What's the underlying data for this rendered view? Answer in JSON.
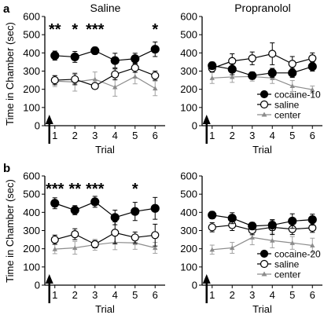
{
  "figure": {
    "panel_labels": [
      "a",
      "b"
    ],
    "column_titles": [
      "Saline",
      "Propranolol"
    ],
    "ylabel": "Time in Chamber (sec)",
    "xlabel": "Trial"
  },
  "chart_data": [
    {
      "type": "line",
      "panel": "a",
      "title": "Saline",
      "xlabel": "Trial",
      "ylabel": "Time in Chamber (sec)",
      "x": [
        1,
        2,
        3,
        4,
        5,
        6
      ],
      "xlim": [
        0.5,
        6.5
      ],
      "ylim": [
        0,
        600
      ],
      "yticks": [
        0,
        100,
        200,
        300,
        400,
        500,
        600
      ],
      "series": [
        {
          "name": "cocaine-10",
          "marker": "filled-circle",
          "values": [
            385,
            378,
            412,
            358,
            368,
            420
          ],
          "errors": [
            25,
            30,
            20,
            40,
            30,
            40
          ]
        },
        {
          "name": "saline",
          "marker": "open-circle",
          "values": [
            250,
            255,
            218,
            282,
            318,
            275
          ],
          "errors": [
            25,
            30,
            15,
            30,
            25,
            25
          ]
        },
        {
          "name": "center",
          "marker": "triangle",
          "values": [
            245,
            240,
            255,
            212,
            270,
            205
          ],
          "errors": [
            30,
            50,
            40,
            50,
            40,
            40
          ]
        }
      ],
      "annotations": [
        {
          "x": 1,
          "text": "**"
        },
        {
          "x": 2,
          "text": "*"
        },
        {
          "x": 3,
          "text": "***"
        },
        {
          "x": 6,
          "text": "*"
        }
      ]
    },
    {
      "type": "line",
      "panel": "a",
      "title": "Propranolol",
      "xlabel": "Trial",
      "x": [
        1,
        2,
        3,
        4,
        5,
        6
      ],
      "xlim": [
        0.5,
        6.5
      ],
      "ylim": [
        0,
        600
      ],
      "yticks": [
        0,
        100,
        200,
        300,
        400,
        500,
        600
      ],
      "series": [
        {
          "name": "cocaine-10",
          "marker": "filled-circle",
          "values": [
            330,
            310,
            275,
            290,
            290,
            325
          ],
          "errors": [
            20,
            30,
            20,
            25,
            25,
            25
          ]
        },
        {
          "name": "saline",
          "marker": "open-circle",
          "values": [
            315,
            355,
            370,
            395,
            340,
            370
          ],
          "errors": [
            20,
            40,
            35,
            60,
            40,
            30
          ]
        },
        {
          "name": "center",
          "marker": "triangle",
          "values": [
            262,
            268,
            270,
            262,
            218,
            198
          ],
          "errors": [
            30,
            30,
            25,
            30,
            30,
            20
          ]
        }
      ],
      "legend": [
        "cocaine-10",
        "saline",
        "center"
      ],
      "legend_position": "bottom-right",
      "annotations": []
    },
    {
      "type": "line",
      "panel": "b",
      "title": "",
      "xlabel": "Trial",
      "ylabel": "Time in Chamber (sec)",
      "x": [
        1,
        2,
        3,
        4,
        5,
        6
      ],
      "xlim": [
        0.5,
        6.5
      ],
      "ylim": [
        0,
        600
      ],
      "yticks": [
        0,
        100,
        200,
        300,
        400,
        500,
        600
      ],
      "series": [
        {
          "name": "cocaine-20",
          "marker": "filled-circle",
          "values": [
            450,
            412,
            458,
            372,
            405,
            422
          ],
          "errors": [
            30,
            25,
            30,
            40,
            50,
            60
          ]
        },
        {
          "name": "saline",
          "marker": "open-circle",
          "values": [
            250,
            280,
            225,
            288,
            262,
            275
          ],
          "errors": [
            25,
            30,
            20,
            60,
            30,
            60
          ]
        },
        {
          "name": "center",
          "marker": "triangle",
          "values": [
            198,
            205,
            222,
            235,
            232,
            205
          ],
          "errors": [
            25,
            35,
            30,
            40,
            35,
            30
          ]
        }
      ],
      "annotations": [
        {
          "x": 1,
          "text": "***"
        },
        {
          "x": 2,
          "text": "**"
        },
        {
          "x": 3,
          "text": "***"
        },
        {
          "x": 5,
          "text": "*"
        }
      ]
    },
    {
      "type": "line",
      "panel": "b",
      "title": "",
      "xlabel": "Trial",
      "x": [
        1,
        2,
        3,
        4,
        5,
        6
      ],
      "xlim": [
        0.5,
        6.5
      ],
      "ylim": [
        0,
        600
      ],
      "yticks": [
        0,
        100,
        200,
        300,
        400,
        500,
        600
      ],
      "series": [
        {
          "name": "cocaine-20",
          "marker": "filled-circle",
          "values": [
            385,
            368,
            325,
            330,
            352,
            360
          ],
          "errors": [
            20,
            30,
            20,
            30,
            40,
            30
          ]
        },
        {
          "name": "saline",
          "marker": "open-circle",
          "values": [
            318,
            330,
            302,
            318,
            308,
            315
          ],
          "errors": [
            25,
            30,
            25,
            40,
            30,
            25
          ]
        },
        {
          "name": "center",
          "marker": "triangle",
          "values": [
            195,
            205,
            262,
            245,
            232,
            218
          ],
          "errors": [
            25,
            30,
            40,
            40,
            35,
            40
          ]
        }
      ],
      "legend": [
        "cocaine-20",
        "saline",
        "center"
      ],
      "legend_position": "bottom-right",
      "annotations": []
    }
  ]
}
